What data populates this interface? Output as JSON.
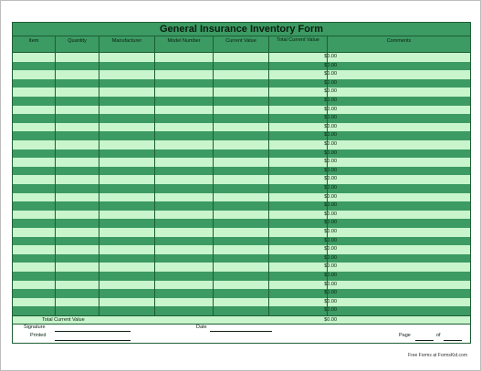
{
  "form": {
    "title": "General Insurance Inventory Form",
    "columns": [
      "Item",
      "Quantity",
      "Manufacturer",
      "Model Number",
      "Current Value",
      "Total Current Value",
      "Comments"
    ],
    "row_total_value": "$0.00",
    "row_count": 30,
    "total_label": "Total Current Value",
    "total_value": "$0.00",
    "signature_label": "Signature",
    "date_label": "Date",
    "printed_label": "Printed",
    "page_label": "Page",
    "of_label": "of"
  },
  "footer": {
    "note": "Free Forms at FormsKid.com"
  },
  "colors": {
    "dark_stripe": "#3c9a63",
    "light_stripe": "#c9f5cc",
    "border": "#1d5e34"
  }
}
